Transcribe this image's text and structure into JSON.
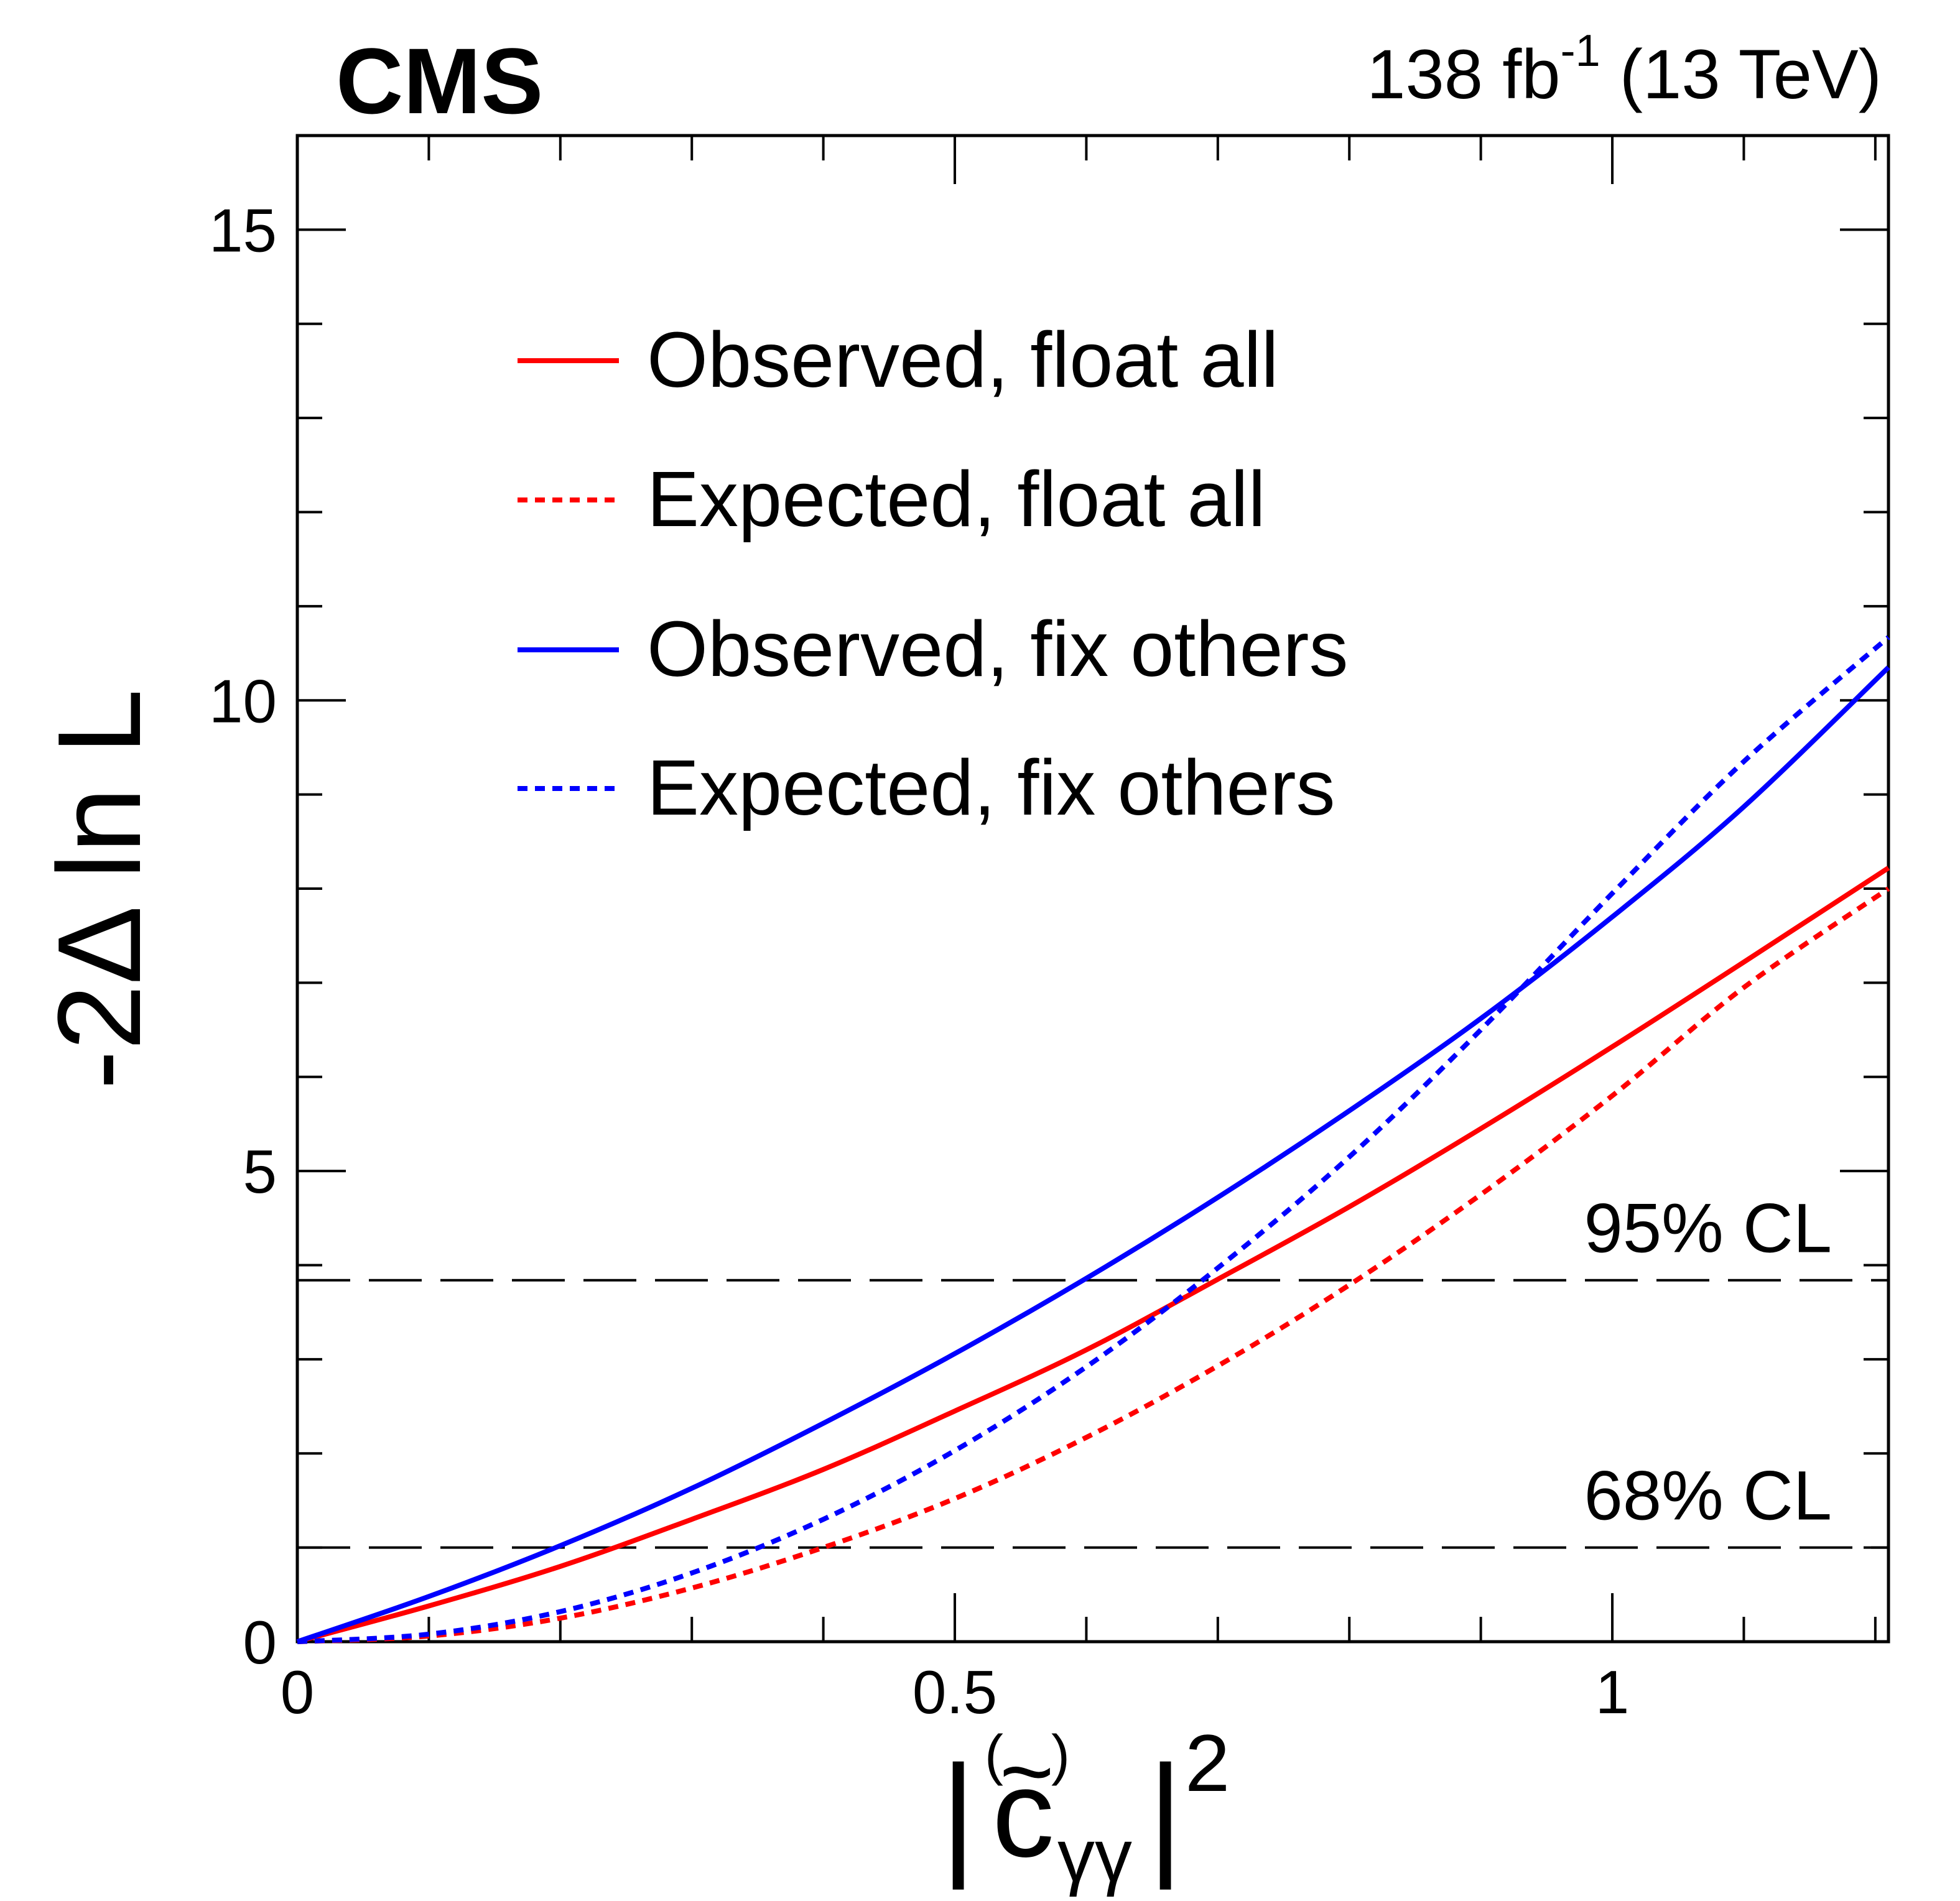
{
  "header": {
    "experiment": "CMS",
    "lumi_value": "138 fb",
    "lumi_exp": "-1",
    "energy": " (13 TeV)"
  },
  "chart_data": {
    "type": "line",
    "title": "",
    "xlabel": {
      "bar_left": "|",
      "symbol": "c",
      "tilde": "~",
      "paren_open": "(",
      "paren_close": ")",
      "subscript": "γγ",
      "bar_right": "|",
      "power": "2"
    },
    "ylabel": "-2Δ ln L",
    "xlim": [
      0,
      1.21
    ],
    "ylim": [
      0,
      16
    ],
    "x_ticks": [
      0,
      0.5,
      1
    ],
    "x_tick_labels": [
      "0",
      "0.5",
      "1"
    ],
    "y_ticks": [
      0,
      5,
      10,
      15
    ],
    "y_tick_labels": [
      "0",
      "5",
      "10",
      "15"
    ],
    "grid": false,
    "legend_position": "top-left",
    "reference_lines": [
      {
        "y": 1.0,
        "label": "68% CL"
      },
      {
        "y": 3.84,
        "label": "95% CL"
      }
    ],
    "series": [
      {
        "name": "Observed, float all",
        "color": "#ff0000",
        "style": "solid",
        "x": [
          0,
          0.1,
          0.2,
          0.3,
          0.4,
          0.5,
          0.6,
          0.7,
          0.8,
          0.9,
          1.0,
          1.1,
          1.21
        ],
        "y": [
          0,
          0.38,
          0.8,
          1.3,
          1.83,
          2.45,
          3.1,
          3.85,
          4.62,
          5.45,
          6.32,
          7.22,
          8.22
        ]
      },
      {
        "name": "Expected, float all",
        "color": "#ff0000",
        "style": "dotted",
        "x": [
          0,
          0.1,
          0.2,
          0.3,
          0.4,
          0.5,
          0.6,
          0.7,
          0.8,
          0.9,
          1.0,
          1.1,
          1.21
        ],
        "y": [
          0,
          0.06,
          0.25,
          0.57,
          1.0,
          1.52,
          2.17,
          2.93,
          3.79,
          4.75,
          5.8,
          6.95,
          8.0
        ]
      },
      {
        "name": "Observed, fix others",
        "color": "#0000ff",
        "style": "solid",
        "x": [
          0,
          0.1,
          0.2,
          0.3,
          0.4,
          0.5,
          0.6,
          0.7,
          0.8,
          0.9,
          1.0,
          1.1,
          1.21
        ],
        "y": [
          0,
          0.48,
          1.02,
          1.63,
          2.32,
          3.06,
          3.86,
          4.72,
          5.64,
          6.62,
          7.7,
          8.87,
          10.35
        ]
      },
      {
        "name": "Expected, fix others",
        "color": "#0000ff",
        "style": "dotted",
        "x": [
          0,
          0.1,
          0.2,
          0.3,
          0.4,
          0.5,
          0.6,
          0.7,
          0.8,
          0.9,
          1.0,
          1.1,
          1.21
        ],
        "y": [
          0,
          0.08,
          0.32,
          0.73,
          1.3,
          2.03,
          2.92,
          3.97,
          5.15,
          6.5,
          7.95,
          9.35,
          10.67
        ]
      }
    ]
  }
}
